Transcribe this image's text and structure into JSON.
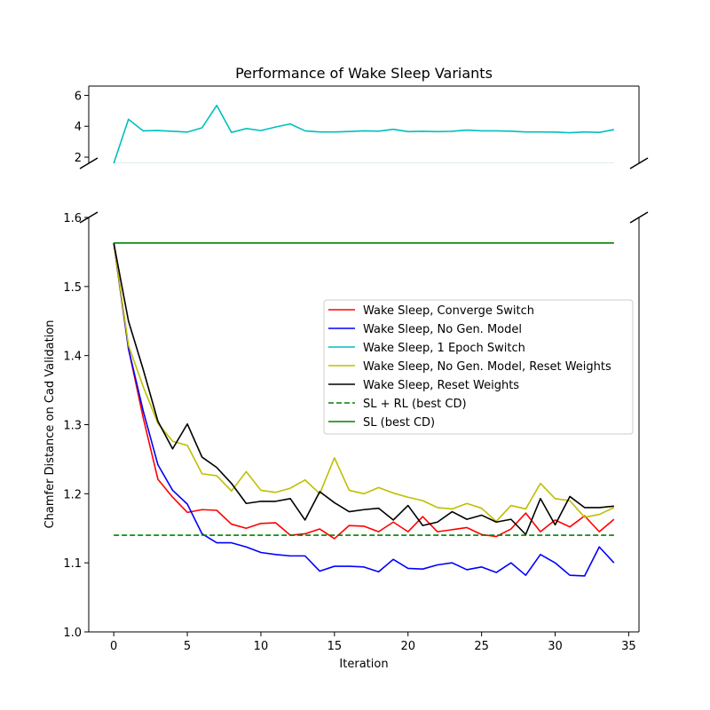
{
  "chart_data": {
    "type": "line",
    "title": "Performance of Wake Sleep Variants",
    "xlabel": "Iteration",
    "ylabel": "Chamfer Distance on Cad Validation",
    "broken_y_axis": true,
    "upper_panel": {
      "ylim": [
        1.6,
        6.6
      ],
      "yticks": [
        2,
        4,
        6
      ]
    },
    "lower_panel": {
      "ylim": [
        1.0,
        1.6
      ],
      "yticks": [
        1.0,
        1.1,
        1.2,
        1.3,
        1.4,
        1.5,
        1.6
      ]
    },
    "xlim": [
      -1.7,
      35.7
    ],
    "xticks": [
      0,
      5,
      10,
      15,
      20,
      25,
      30,
      35
    ],
    "legend_position": "center-right",
    "series": [
      {
        "name": "Wake Sleep, Converge Switch",
        "color": "#ff0000",
        "linestyle": "solid",
        "x": [
          0,
          1,
          2,
          3,
          4,
          5,
          6,
          7,
          8,
          9,
          10,
          11,
          12,
          13,
          14,
          15,
          16,
          17,
          18,
          19,
          20,
          21,
          22,
          23,
          24,
          25,
          26,
          27,
          28,
          29,
          30,
          31,
          32,
          33,
          34
        ],
        "values": [
          1.563,
          1.41,
          1.31,
          1.221,
          1.195,
          1.173,
          1.177,
          1.176,
          1.156,
          1.15,
          1.157,
          1.158,
          1.14,
          1.142,
          1.149,
          1.135,
          1.154,
          1.153,
          1.145,
          1.159,
          1.145,
          1.167,
          1.145,
          1.148,
          1.151,
          1.141,
          1.138,
          1.149,
          1.172,
          1.145,
          1.162,
          1.152,
          1.168,
          1.145,
          1.163
        ]
      },
      {
        "name": "Wake Sleep, No Gen. Model",
        "color": "#0000ff",
        "linestyle": "solid",
        "x": [
          0,
          1,
          2,
          3,
          4,
          5,
          6,
          7,
          8,
          9,
          10,
          11,
          12,
          13,
          14,
          15,
          16,
          17,
          18,
          19,
          20,
          21,
          22,
          23,
          24,
          25,
          26,
          27,
          28,
          29,
          30,
          31,
          32,
          33,
          34
        ],
        "values": [
          1.563,
          1.41,
          1.32,
          1.242,
          1.205,
          1.185,
          1.142,
          1.129,
          1.129,
          1.123,
          1.115,
          1.112,
          1.11,
          1.11,
          1.088,
          1.095,
          1.095,
          1.094,
          1.087,
          1.105,
          1.092,
          1.091,
          1.097,
          1.1,
          1.09,
          1.094,
          1.086,
          1.1,
          1.082,
          1.112,
          1.1,
          1.082,
          1.081,
          1.123,
          1.1
        ]
      },
      {
        "name": "Wake Sleep, 1 Epoch Switch",
        "color": "#00bfbf",
        "linestyle": "solid",
        "x": [
          0,
          1,
          2,
          3,
          4,
          5,
          6,
          7,
          8,
          9,
          10,
          11,
          12,
          13,
          14,
          15,
          16,
          17,
          18,
          19,
          20,
          21,
          22,
          23,
          24,
          25,
          26,
          27,
          28,
          29,
          30,
          31,
          32,
          33,
          34
        ],
        "values": [
          1.6,
          4.45,
          3.7,
          3.72,
          3.67,
          3.62,
          3.9,
          5.35,
          3.6,
          3.85,
          3.72,
          3.95,
          4.15,
          3.7,
          3.63,
          3.63,
          3.66,
          3.7,
          3.68,
          3.8,
          3.65,
          3.67,
          3.65,
          3.67,
          3.75,
          3.7,
          3.7,
          3.68,
          3.63,
          3.63,
          3.62,
          3.58,
          3.63,
          3.6,
          3.78
        ]
      },
      {
        "name": "Wake Sleep, No Gen. Model, Reset Weights",
        "color": "#bfbf00",
        "linestyle": "solid",
        "x": [
          0,
          1,
          2,
          3,
          4,
          5,
          6,
          7,
          8,
          9,
          10,
          11,
          12,
          13,
          14,
          15,
          16,
          17,
          18,
          19,
          20,
          21,
          22,
          23,
          24,
          25,
          26,
          27,
          28,
          29,
          30,
          31,
          32,
          33,
          34
        ],
        "values": [
          1.563,
          1.415,
          1.355,
          1.302,
          1.276,
          1.27,
          1.229,
          1.226,
          1.204,
          1.232,
          1.205,
          1.202,
          1.208,
          1.22,
          1.2,
          1.252,
          1.205,
          1.2,
          1.209,
          1.201,
          1.195,
          1.19,
          1.18,
          1.178,
          1.186,
          1.179,
          1.16,
          1.183,
          1.178,
          1.215,
          1.193,
          1.19,
          1.166,
          1.17,
          1.18
        ]
      },
      {
        "name": "Wake Sleep, Reset Weights",
        "color": "#000000",
        "linestyle": "solid",
        "x": [
          0,
          1,
          2,
          3,
          4,
          5,
          6,
          7,
          8,
          9,
          10,
          11,
          12,
          13,
          14,
          15,
          16,
          17,
          18,
          19,
          20,
          21,
          22,
          23,
          24,
          25,
          26,
          27,
          28,
          29,
          30,
          31,
          32,
          33,
          34
        ],
        "values": [
          1.563,
          1.45,
          1.38,
          1.305,
          1.265,
          1.301,
          1.253,
          1.238,
          1.215,
          1.186,
          1.189,
          1.189,
          1.193,
          1.162,
          1.203,
          1.187,
          1.174,
          1.177,
          1.179,
          1.162,
          1.183,
          1.154,
          1.159,
          1.174,
          1.163,
          1.169,
          1.159,
          1.163,
          1.141,
          1.193,
          1.155,
          1.196,
          1.18,
          1.18,
          1.182
        ]
      },
      {
        "name": "SL + RL (best CD)",
        "color": "#008000",
        "linestyle": "dashed",
        "x": [
          0,
          34
        ],
        "values": [
          1.14,
          1.14
        ]
      },
      {
        "name": "SL (best CD)",
        "color": "#008000",
        "linestyle": "solid",
        "x": [
          0,
          34
        ],
        "values": [
          1.563,
          1.563
        ]
      }
    ]
  }
}
